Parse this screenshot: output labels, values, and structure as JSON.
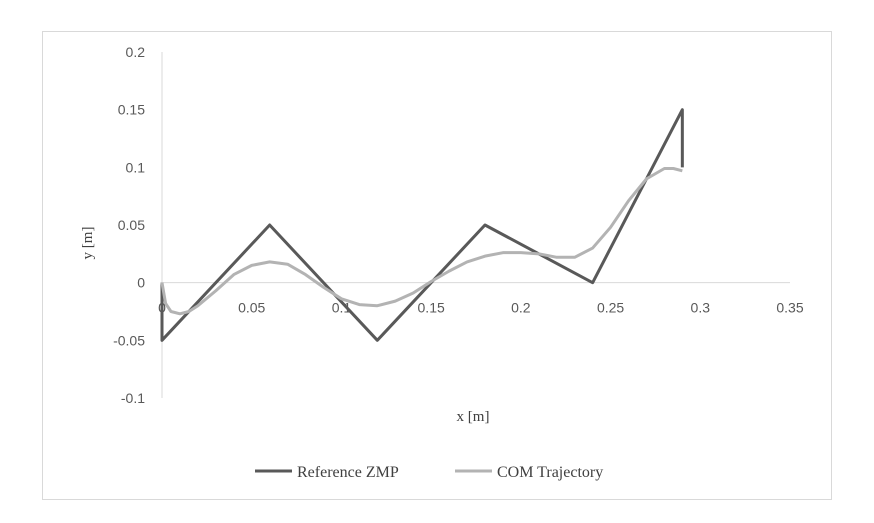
{
  "chart_data": {
    "type": "line",
    "title": "",
    "xlabel": "x [m]",
    "ylabel": "y [m]",
    "xlim": [
      0,
      0.35
    ],
    "ylim": [
      -0.1,
      0.2
    ],
    "x_ticks": [
      "0",
      "0.05",
      "0.1",
      "0.15",
      "0.2",
      "0.25",
      "0.3",
      "0.35"
    ],
    "y_ticks": [
      "0.2",
      "0.15",
      "0.1",
      "0.05",
      "0",
      "-0.05",
      "-0.1"
    ],
    "grid": false,
    "legend_position": "bottom",
    "series": [
      {
        "name": "Reference ZMP",
        "color": "#595959",
        "x": [
          0,
          0,
          0.06,
          0.12,
          0.18,
          0.24,
          0.29,
          0.29
        ],
        "y": [
          0,
          -0.05,
          0.05,
          -0.05,
          0.05,
          0,
          0.15,
          0.1
        ]
      },
      {
        "name": "COM Trajectory",
        "color": "#b3b3b3",
        "x": [
          0,
          0.002,
          0.005,
          0.01,
          0.015,
          0.02,
          0.03,
          0.04,
          0.05,
          0.06,
          0.07,
          0.08,
          0.09,
          0.1,
          0.11,
          0.12,
          0.13,
          0.14,
          0.15,
          0.16,
          0.17,
          0.18,
          0.19,
          0.2,
          0.21,
          0.22,
          0.23,
          0.24,
          0.25,
          0.26,
          0.27,
          0.28,
          0.285,
          0.29
        ],
        "y": [
          0,
          -0.018,
          -0.025,
          -0.027,
          -0.025,
          -0.02,
          -0.007,
          0.007,
          0.015,
          0.018,
          0.016,
          0.007,
          -0.004,
          -0.014,
          -0.019,
          -0.02,
          -0.016,
          -0.009,
          0.001,
          0.01,
          0.018,
          0.023,
          0.026,
          0.026,
          0.025,
          0.022,
          0.022,
          0.03,
          0.048,
          0.071,
          0.09,
          0.099,
          0.099,
          0.097
        ]
      }
    ]
  }
}
